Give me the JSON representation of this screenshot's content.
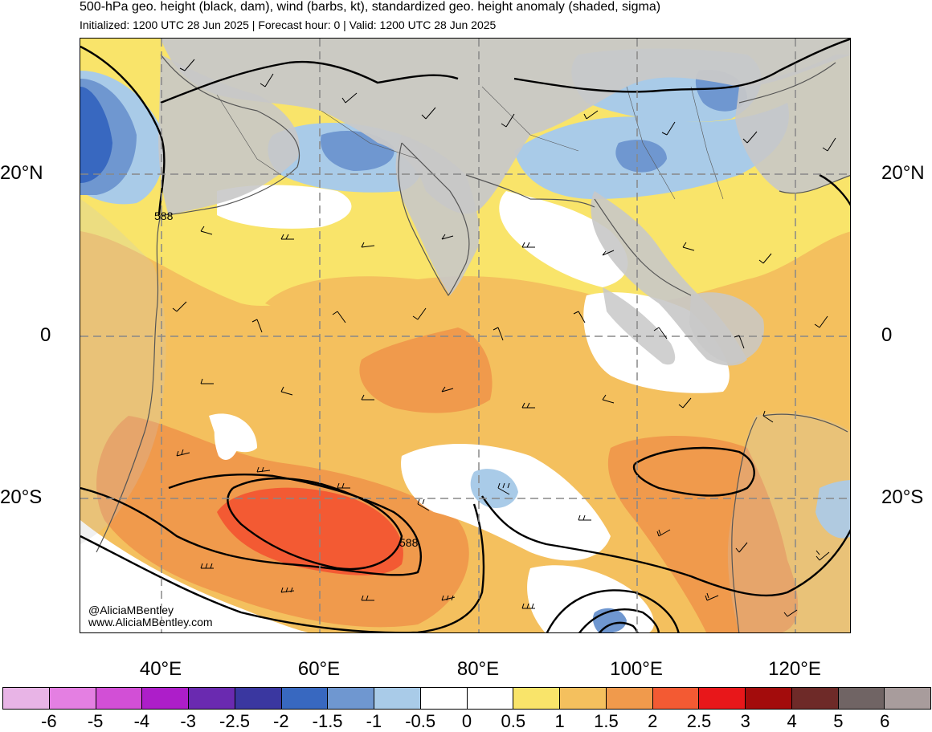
{
  "header": {
    "title": "500-hPa geo. height (black, dam), wind (barbs, kt), standardized geo. height anomaly (shaded, sigma)",
    "subtitle": "Initialized: 1200 UTC 28 Jun 2025 | Forecast hour: 0 | Valid: 1200 UTC 28 Jun 2025"
  },
  "map": {
    "lat_labels": [
      "20°N",
      "0",
      "20°S"
    ],
    "lon_labels": [
      "40°E",
      "60°E",
      "80°E",
      "100°E",
      "120°E"
    ],
    "contour_labels": [
      "588",
      "588"
    ],
    "credit_handle": "@AliciaMBentley",
    "credit_site": "www.AliciaMBentley.com",
    "land_color": "#c8c8c8"
  },
  "colorbar": {
    "colors": [
      "#e8b4e6",
      "#e47fe2",
      "#d24fd6",
      "#ad1ec9",
      "#6a2ab0",
      "#3a37a0",
      "#3868c0",
      "#6f97d0",
      "#a9cbe8",
      "#ffffff",
      "#ffffff",
      "#f9e46a",
      "#f4c05e",
      "#f09a4c",
      "#f35a33",
      "#e8171a",
      "#a30c0c",
      "#6e2a28",
      "#706464",
      "#a89c9c"
    ],
    "ticks": [
      "-6",
      "-5",
      "-4",
      "-3",
      "-2.5",
      "-2",
      "-1.5",
      "-1",
      "-0.5",
      "0",
      "0.5",
      "1",
      "1.5",
      "2",
      "2.5",
      "3",
      "4",
      "5",
      "6"
    ]
  }
}
